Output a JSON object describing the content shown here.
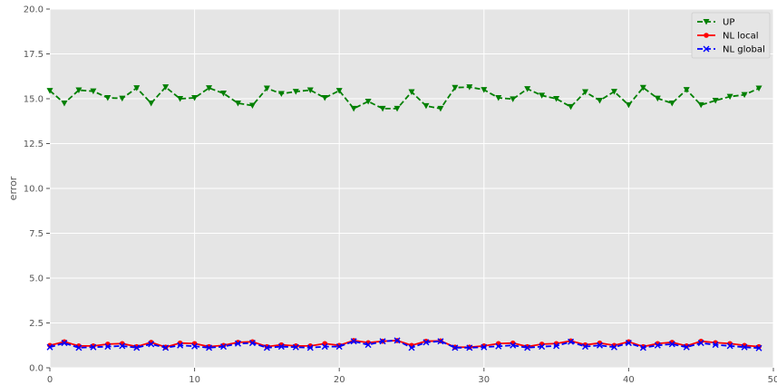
{
  "chart_data": {
    "type": "line",
    "title": "",
    "xlabel": "",
    "ylabel": "error",
    "xlim": [
      0,
      50
    ],
    "ylim": [
      0,
      20
    ],
    "xticks": [
      0,
      10,
      20,
      30,
      40,
      50
    ],
    "yticks": [
      0.0,
      2.5,
      5.0,
      7.5,
      10.0,
      12.5,
      15.0,
      17.5,
      20.0
    ],
    "ytick_labels": [
      "0.0",
      "2.5",
      "5.0",
      "7.5",
      "10.0",
      "12.5",
      "15.0",
      "17.5",
      "20.0"
    ],
    "xtick_labels": [
      "0",
      "10",
      "20",
      "30",
      "40",
      "50"
    ],
    "grid": true,
    "legend_position": "top-right",
    "x": [
      0,
      1,
      2,
      3,
      4,
      5,
      6,
      7,
      8,
      9,
      10,
      11,
      12,
      13,
      14,
      15,
      16,
      17,
      18,
      19,
      20,
      21,
      22,
      23,
      24,
      25,
      26,
      27,
      28,
      29,
      30,
      31,
      32,
      33,
      34,
      35,
      36,
      37,
      38,
      39,
      40,
      41,
      42,
      43,
      44,
      45,
      46,
      47,
      48,
      49
    ],
    "series": [
      {
        "name": "UP",
        "color": "#008000",
        "marker": "triangle-down",
        "linestyle": "dashed",
        "values": [
          15.45,
          14.75,
          15.48,
          15.42,
          15.05,
          15.02,
          15.6,
          14.75,
          15.65,
          15.0,
          15.05,
          15.6,
          15.3,
          14.75,
          14.62,
          15.58,
          15.28,
          15.4,
          15.48,
          15.05,
          15.45,
          14.45,
          14.85,
          14.45,
          14.45,
          15.38,
          14.6,
          14.45,
          15.62,
          15.65,
          15.5,
          15.05,
          14.98,
          15.55,
          15.18,
          15.0,
          14.55,
          15.38,
          14.9,
          15.4,
          14.65,
          15.62,
          15.02,
          14.75,
          15.5,
          14.65,
          14.9,
          15.12,
          15.22,
          15.58
        ]
      },
      {
        "name": "NL local",
        "color": "#ff0000",
        "marker": "circle",
        "linestyle": "solid",
        "values": [
          1.25,
          1.45,
          1.22,
          1.22,
          1.32,
          1.35,
          1.18,
          1.42,
          1.15,
          1.38,
          1.35,
          1.18,
          1.25,
          1.42,
          1.45,
          1.18,
          1.28,
          1.22,
          1.22,
          1.35,
          1.25,
          1.52,
          1.4,
          1.48,
          1.52,
          1.25,
          1.48,
          1.5,
          1.15,
          1.15,
          1.22,
          1.35,
          1.38,
          1.18,
          1.32,
          1.35,
          1.5,
          1.28,
          1.38,
          1.25,
          1.45,
          1.18,
          1.35,
          1.42,
          1.22,
          1.48,
          1.4,
          1.35,
          1.25,
          1.18
        ]
      },
      {
        "name": "NL global",
        "color": "#0000ff",
        "marker": "x",
        "linestyle": "dashed",
        "values": [
          1.15,
          1.38,
          1.12,
          1.15,
          1.18,
          1.22,
          1.12,
          1.32,
          1.12,
          1.25,
          1.2,
          1.12,
          1.18,
          1.35,
          1.38,
          1.12,
          1.18,
          1.15,
          1.12,
          1.18,
          1.18,
          1.48,
          1.28,
          1.48,
          1.52,
          1.12,
          1.42,
          1.48,
          1.12,
          1.12,
          1.15,
          1.2,
          1.25,
          1.12,
          1.18,
          1.22,
          1.45,
          1.18,
          1.25,
          1.15,
          1.38,
          1.12,
          1.25,
          1.32,
          1.15,
          1.38,
          1.28,
          1.22,
          1.15,
          1.1
        ]
      }
    ]
  }
}
